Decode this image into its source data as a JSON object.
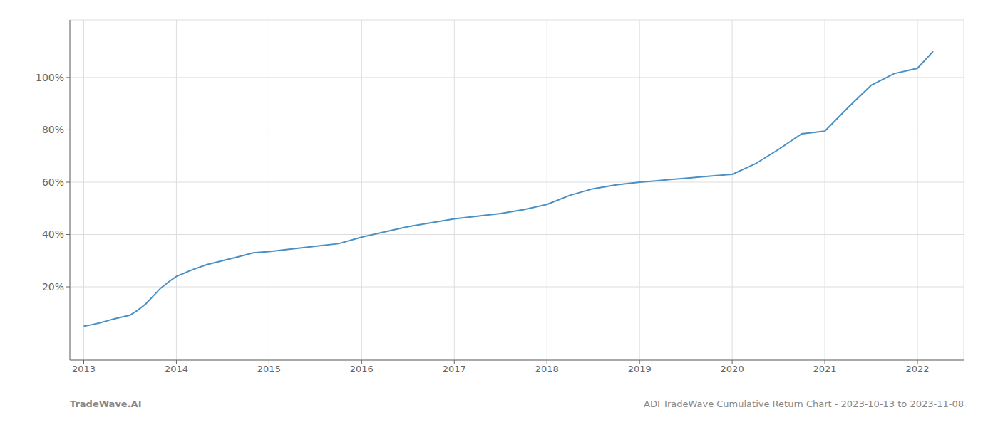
{
  "chart_data": {
    "type": "line",
    "x": [
      2013.0,
      2013.08,
      2013.17,
      2013.25,
      2013.33,
      2013.42,
      2013.5,
      2013.58,
      2013.67,
      2013.75,
      2013.83,
      2013.92,
      2014.0,
      2014.17,
      2014.33,
      2014.5,
      2014.67,
      2014.83,
      2015.0,
      2015.25,
      2015.5,
      2015.75,
      2016.0,
      2016.25,
      2016.5,
      2016.75,
      2017.0,
      2017.25,
      2017.5,
      2017.75,
      2018.0,
      2018.25,
      2018.5,
      2018.75,
      2019.0,
      2019.17,
      2019.33,
      2019.5,
      2019.67,
      2019.83,
      2020.0,
      2020.25,
      2020.5,
      2020.75,
      2021.0,
      2021.25,
      2021.5,
      2021.75,
      2022.0,
      2022.17
    ],
    "values": [
      5.0,
      5.5,
      6.2,
      7.0,
      7.8,
      8.5,
      9.2,
      11.0,
      13.5,
      16.5,
      19.5,
      22.0,
      24.0,
      26.5,
      28.5,
      30.0,
      31.5,
      33.0,
      33.5,
      34.5,
      35.5,
      36.5,
      39.0,
      41.0,
      43.0,
      44.5,
      46.0,
      47.0,
      48.0,
      49.5,
      51.5,
      55.0,
      57.5,
      59.0,
      60.0,
      60.5,
      61.0,
      61.5,
      62.0,
      62.5,
      63.0,
      67.0,
      72.5,
      78.5,
      79.5,
      88.5,
      97.0,
      101.5,
      103.5,
      110.0
    ],
    "color": "#4a90c4",
    "xlim": [
      2012.85,
      2022.5
    ],
    "xticks": [
      2013,
      2014,
      2015,
      2016,
      2017,
      2018,
      2019,
      2020,
      2021,
      2022
    ],
    "ylim": [
      -8,
      122
    ],
    "yticks": [
      {
        "value": 20,
        "label": "20%"
      },
      {
        "value": 40,
        "label": "40%"
      },
      {
        "value": 60,
        "label": "60%"
      },
      {
        "value": 80,
        "label": "80%"
      },
      {
        "value": 100,
        "label": "100%"
      }
    ],
    "grid": true,
    "annotations": [
      "TradeWave.AI",
      "ADI TradeWave Cumulative Return Chart - 2023-10-13 to 2023-11-08"
    ]
  }
}
